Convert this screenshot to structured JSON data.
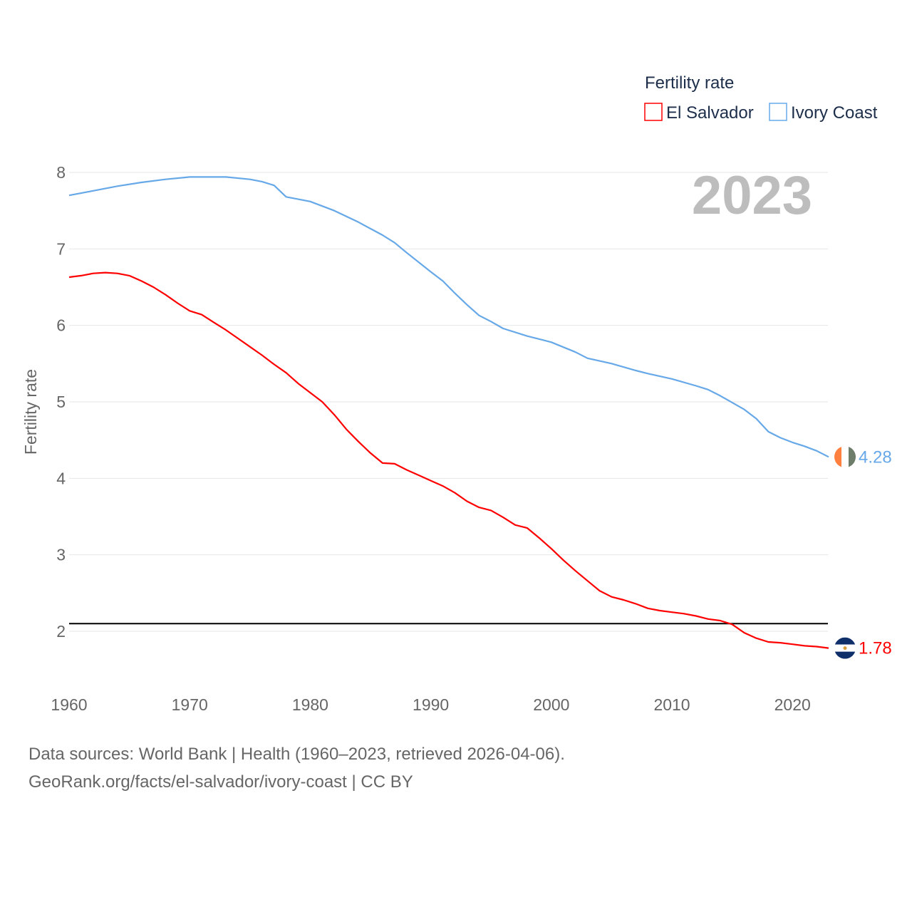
{
  "chart_data": {
    "type": "line",
    "title": "",
    "legend_title": "Fertility rate",
    "legend_placement": "top-right",
    "ylabel": "Fertility rate",
    "xlabel": "",
    "ylim": [
      1.4,
      8.2
    ],
    "xlim": [
      1960,
      2023
    ],
    "yticks": [
      2,
      3,
      4,
      5,
      6,
      7,
      8
    ],
    "xticks": [
      1960,
      1970,
      1980,
      1990,
      2000,
      2010,
      2020
    ],
    "year_label": "2023",
    "reference_line": 2.1,
    "grid": true,
    "series": [
      {
        "name": "El Salvador",
        "color": "#ff0000",
        "end_label": "1.78",
        "flag": "el-salvador-flag",
        "x": [
          1960,
          1961,
          1962,
          1963,
          1964,
          1965,
          1966,
          1967,
          1968,
          1969,
          1970,
          1971,
          1972,
          1973,
          1974,
          1975,
          1976,
          1977,
          1978,
          1979,
          1980,
          1981,
          1982,
          1983,
          1984,
          1985,
          1986,
          1987,
          1988,
          1989,
          1990,
          1991,
          1992,
          1993,
          1994,
          1995,
          1996,
          1997,
          1998,
          1999,
          2000,
          2001,
          2002,
          2003,
          2004,
          2005,
          2006,
          2007,
          2008,
          2009,
          2010,
          2011,
          2012,
          2013,
          2014,
          2015,
          2016,
          2017,
          2018,
          2019,
          2020,
          2021,
          2022,
          2023
        ],
        "values": [
          6.63,
          6.65,
          6.68,
          6.69,
          6.68,
          6.65,
          6.58,
          6.5,
          6.4,
          6.29,
          6.19,
          6.14,
          6.04,
          5.94,
          5.83,
          5.72,
          5.61,
          5.49,
          5.38,
          5.24,
          5.12,
          5.0,
          4.83,
          4.64,
          4.48,
          4.33,
          4.2,
          4.19,
          4.11,
          4.04,
          3.97,
          3.9,
          3.81,
          3.7,
          3.62,
          3.58,
          3.49,
          3.39,
          3.35,
          3.22,
          3.08,
          2.93,
          2.79,
          2.66,
          2.53,
          2.45,
          2.41,
          2.36,
          2.3,
          2.27,
          2.25,
          2.23,
          2.2,
          2.16,
          2.14,
          2.09,
          1.98,
          1.91,
          1.86,
          1.85,
          1.83,
          1.81,
          1.8,
          1.78
        ]
      },
      {
        "name": "Ivory Coast",
        "color": "#66a8e8",
        "end_label": "4.28",
        "flag": "ivory-coast-flag",
        "x": [
          1960,
          1962,
          1964,
          1966,
          1968,
          1970,
          1972,
          1973,
          1975,
          1976,
          1977,
          1978,
          1980,
          1982,
          1984,
          1986,
          1987,
          1988,
          1990,
          1991,
          1992,
          1993,
          1994,
          1995,
          1996,
          1998,
          2000,
          2002,
          2003,
          2005,
          2007,
          2008,
          2010,
          2012,
          2013,
          2014,
          2016,
          2017,
          2018,
          2019,
          2020,
          2021,
          2022,
          2023
        ],
        "values": [
          7.7,
          7.76,
          7.82,
          7.87,
          7.91,
          7.94,
          7.94,
          7.94,
          7.91,
          7.88,
          7.83,
          7.68,
          7.62,
          7.5,
          7.35,
          7.18,
          7.08,
          6.95,
          6.7,
          6.58,
          6.42,
          6.27,
          6.13,
          6.05,
          5.96,
          5.86,
          5.78,
          5.65,
          5.57,
          5.5,
          5.41,
          5.37,
          5.3,
          5.21,
          5.16,
          5.08,
          4.9,
          4.78,
          4.61,
          4.53,
          4.47,
          4.42,
          4.36,
          4.28
        ]
      }
    ]
  },
  "footer": {
    "line1": "Data sources: World Bank | Health (1960–2023, retrieved 2026-04-06).",
    "line2": "GeoRank.org/facts/el-salvador/ivory-coast | CC BY"
  }
}
